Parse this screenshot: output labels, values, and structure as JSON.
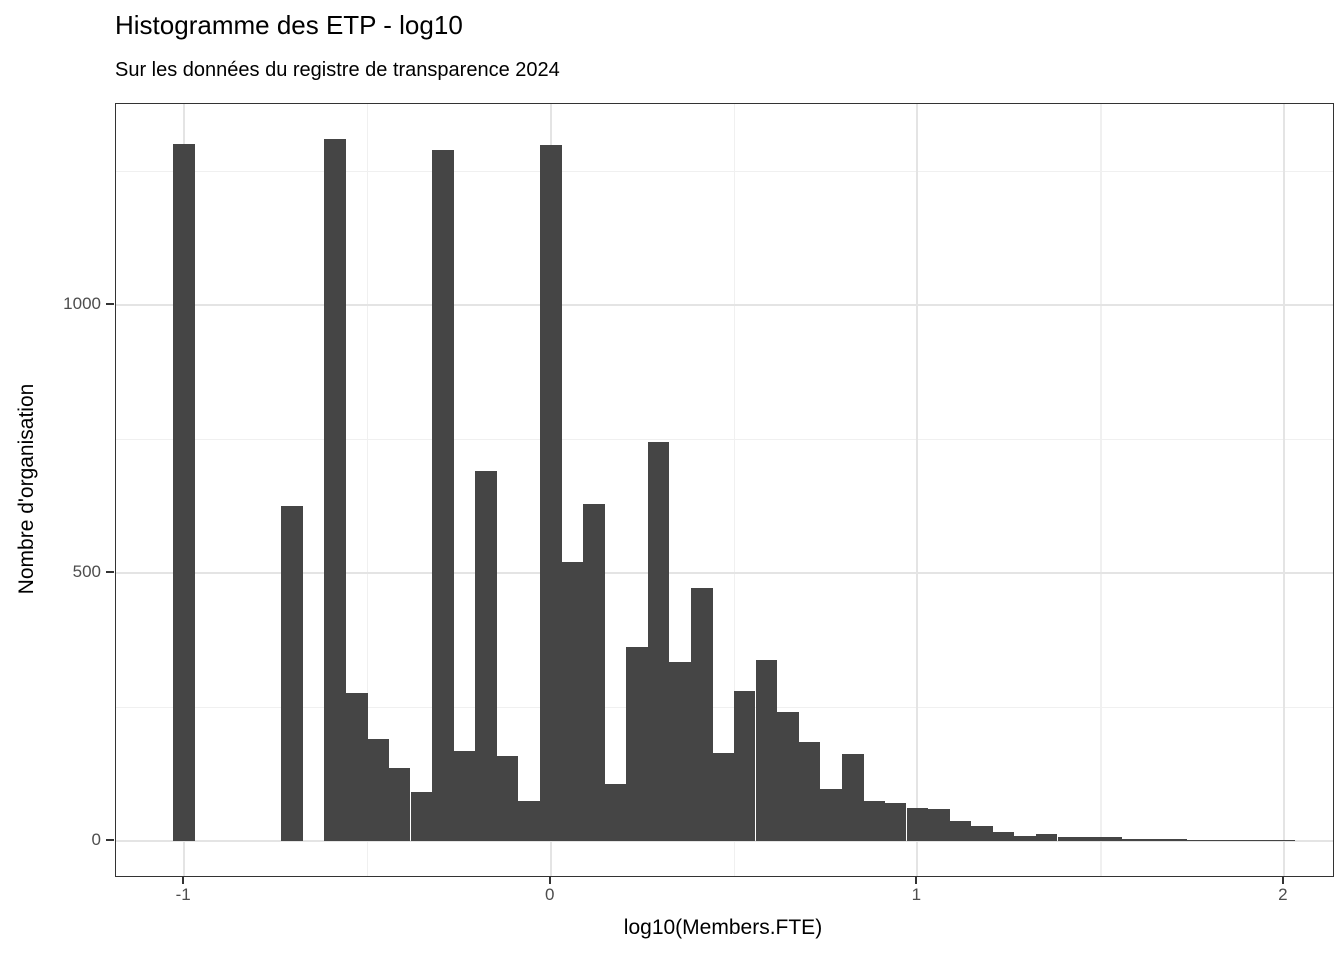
{
  "chart_data": {
    "type": "bar",
    "subtype": "histogram",
    "title": "Histogramme des ETP - log10",
    "subtitle": "Sur les données du registre de transparence 2024",
    "xlabel": "log10(Members.FTE)",
    "ylabel": "Nombre d'organisation",
    "xlim": [
      -1.186,
      2.134
    ],
    "ylim": [
      -65.5,
      1376
    ],
    "x_ticks": [
      -1,
      0,
      1,
      2
    ],
    "x_tick_labels": [
      "-1",
      "0",
      "1",
      "2"
    ],
    "y_ticks": [
      0,
      500,
      1000
    ],
    "y_tick_labels": [
      "0",
      "500",
      "1000"
    ],
    "x_minor_ticks": [
      -0.5,
      0.5,
      1.5
    ],
    "y_minor_ticks": [
      250,
      750,
      1250
    ],
    "grid": true,
    "legend": "none",
    "binwidth": 0.0588,
    "bins": {
      "x": [
        -1.0,
        -0.941,
        -0.882,
        -0.824,
        -0.765,
        -0.706,
        -0.647,
        -0.588,
        -0.529,
        -0.471,
        -0.412,
        -0.353,
        -0.294,
        -0.235,
        -0.176,
        -0.118,
        -0.059,
        0.0,
        0.059,
        0.118,
        0.176,
        0.235,
        0.294,
        0.353,
        0.412,
        0.471,
        0.529,
        0.588,
        0.647,
        0.706,
        0.765,
        0.824,
        0.882,
        0.941,
        1.0,
        1.059,
        1.118,
        1.176,
        1.235,
        1.294,
        1.353,
        1.412,
        1.471,
        1.529,
        1.588,
        1.647,
        1.706,
        1.765,
        1.824,
        1.882,
        1.941,
        2.0
      ],
      "counts": [
        1302,
        0,
        0,
        0,
        0,
        626,
        0,
        1310,
        277,
        190,
        137,
        92,
        1291,
        168,
        690,
        159,
        75,
        1299,
        520,
        630,
        106,
        363,
        745,
        335,
        473,
        165,
        280,
        338,
        240,
        184,
        97,
        162,
        74,
        70,
        62,
        60,
        38,
        28,
        16,
        10,
        12,
        7,
        8,
        8,
        3,
        3,
        3,
        2,
        1,
        2,
        1,
        1
      ]
    },
    "colors": {
      "bar_fill": "#454545",
      "panel_border": "#333333",
      "grid_major": "#e4e4e4",
      "grid_minor": "#f0f0f0",
      "tick_text": "#4d4d4d",
      "axis_text": "#000000",
      "tick_mark": "#333333",
      "background": "#ffffff"
    }
  }
}
